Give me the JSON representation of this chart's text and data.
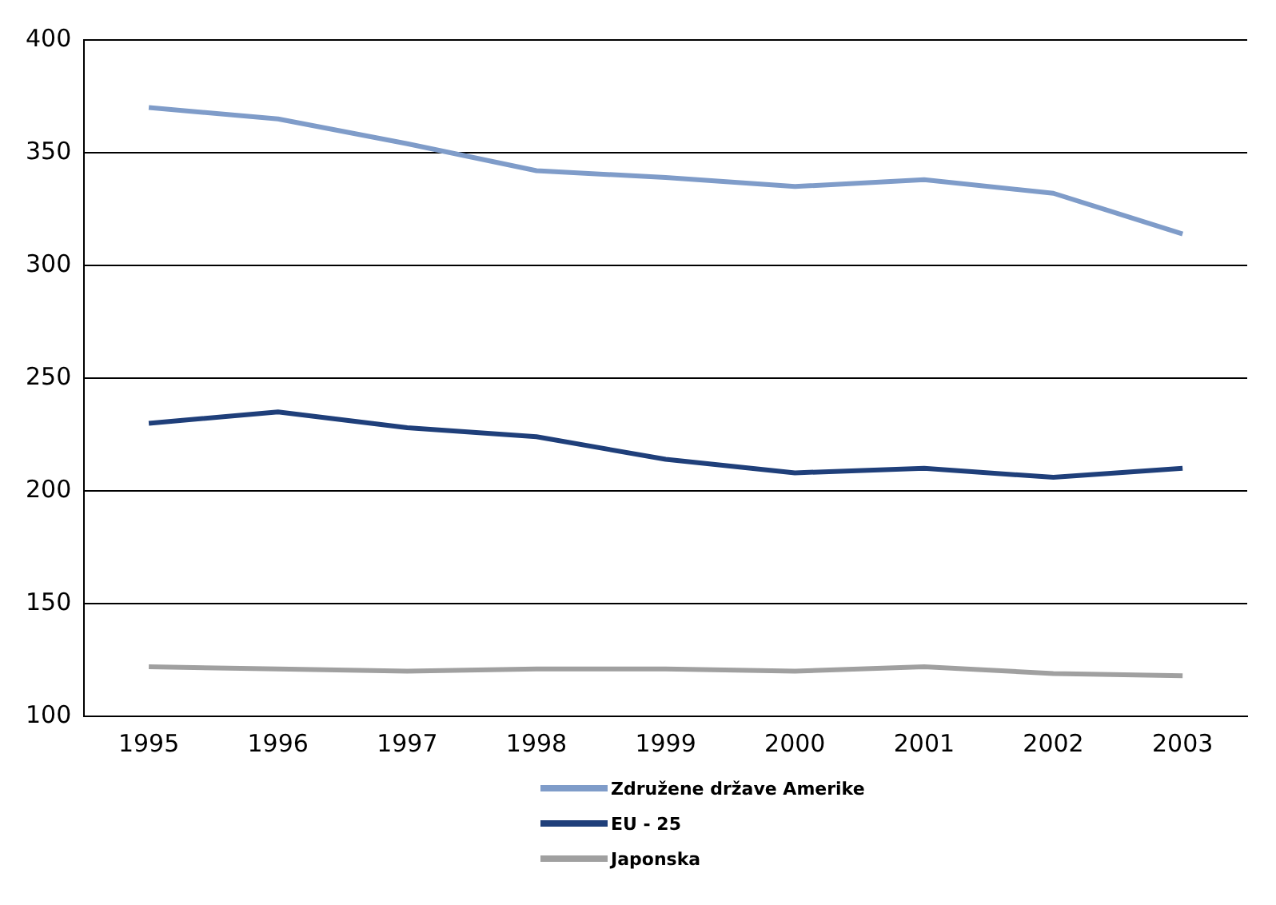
{
  "chart_data": {
    "type": "line",
    "categories": [
      "1995",
      "1996",
      "1997",
      "1998",
      "1999",
      "2000",
      "2001",
      "2002",
      "2003"
    ],
    "series": [
      {
        "name": "Združene države Amerike",
        "color": "#7f9cc9",
        "values": [
          370,
          365,
          354,
          342,
          339,
          335,
          338,
          332,
          314
        ]
      },
      {
        "name": "EU - 25",
        "color": "#1f3f7a",
        "values": [
          230,
          235,
          228,
          224,
          214,
          208,
          210,
          206,
          210
        ]
      },
      {
        "name": "Japonska",
        "color": "#a0a0a0",
        "values": [
          122,
          121,
          120,
          121,
          121,
          120,
          122,
          119,
          118
        ]
      }
    ],
    "ylim": [
      100,
      400
    ],
    "yticks": [
      100,
      150,
      200,
      250,
      300,
      350,
      400
    ],
    "grid": "y",
    "legend": "bottom",
    "marker": "none",
    "line_style": "solid"
  }
}
